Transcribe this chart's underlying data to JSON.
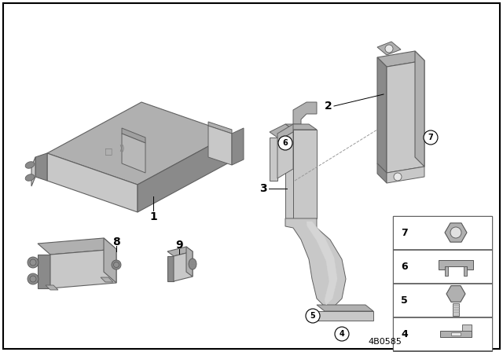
{
  "bg_color": "#ffffff",
  "part_number": "4B0585",
  "text_color": "#000000",
  "gray_light": "#c8c8c8",
  "gray_mid": "#b0b0b0",
  "gray_dark": "#8a8a8a",
  "gray_darker": "#707070",
  "border_color": "#000000"
}
